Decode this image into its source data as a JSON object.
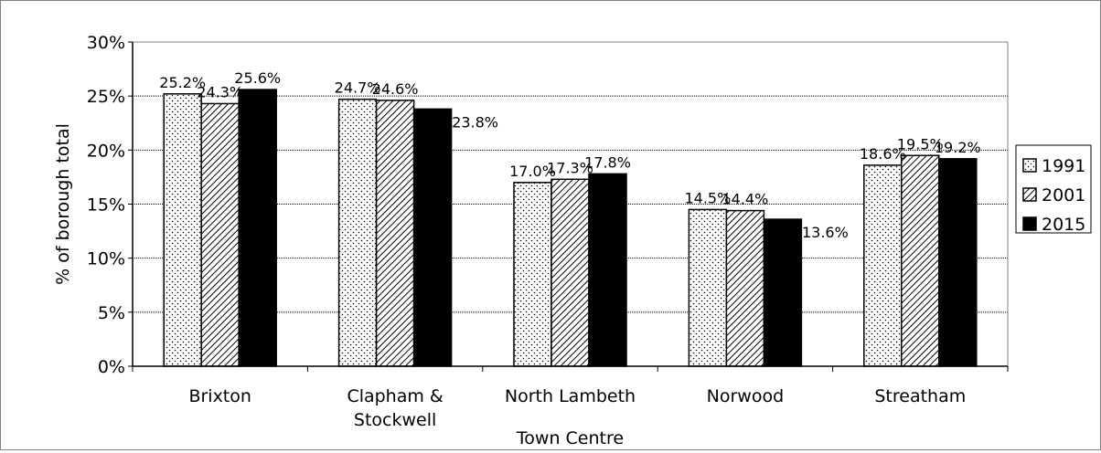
{
  "chart_data": {
    "type": "bar",
    "title": "",
    "xlabel": "Town Centre",
    "ylabel": "% of borough total",
    "categories": [
      [
        "Brixton"
      ],
      [
        "Clapham &",
        "Stockwell"
      ],
      [
        "North Lambeth"
      ],
      [
        "Norwood"
      ],
      [
        "Streatham"
      ]
    ],
    "series": [
      {
        "name": "1991",
        "values": [
          25.2,
          24.7,
          17.0,
          14.5,
          18.6
        ],
        "labels": [
          "25.2%",
          "24.7%",
          "17.0%",
          "14.5%",
          "18.6%"
        ],
        "pattern": "dots"
      },
      {
        "name": "2001",
        "values": [
          24.3,
          24.6,
          17.3,
          14.4,
          19.5
        ],
        "labels": [
          "24.3%",
          "24.6%",
          "17.3%",
          "14.4%",
          "19.5%"
        ],
        "pattern": "hatch"
      },
      {
        "name": "2015",
        "values": [
          25.6,
          23.8,
          17.8,
          13.6,
          19.2
        ],
        "labels": [
          "25.6%",
          "23.8%",
          "17.8%",
          "13.6%",
          "19.2%"
        ],
        "pattern": "solid"
      }
    ],
    "ylim": [
      0,
      30
    ],
    "yticks": [
      0,
      5,
      10,
      15,
      20,
      25,
      30
    ],
    "ytick_labels": [
      "0%",
      "5%",
      "10%",
      "15%",
      "20%",
      "25%",
      "30%"
    ],
    "grid": true,
    "legend_position": "right"
  }
}
